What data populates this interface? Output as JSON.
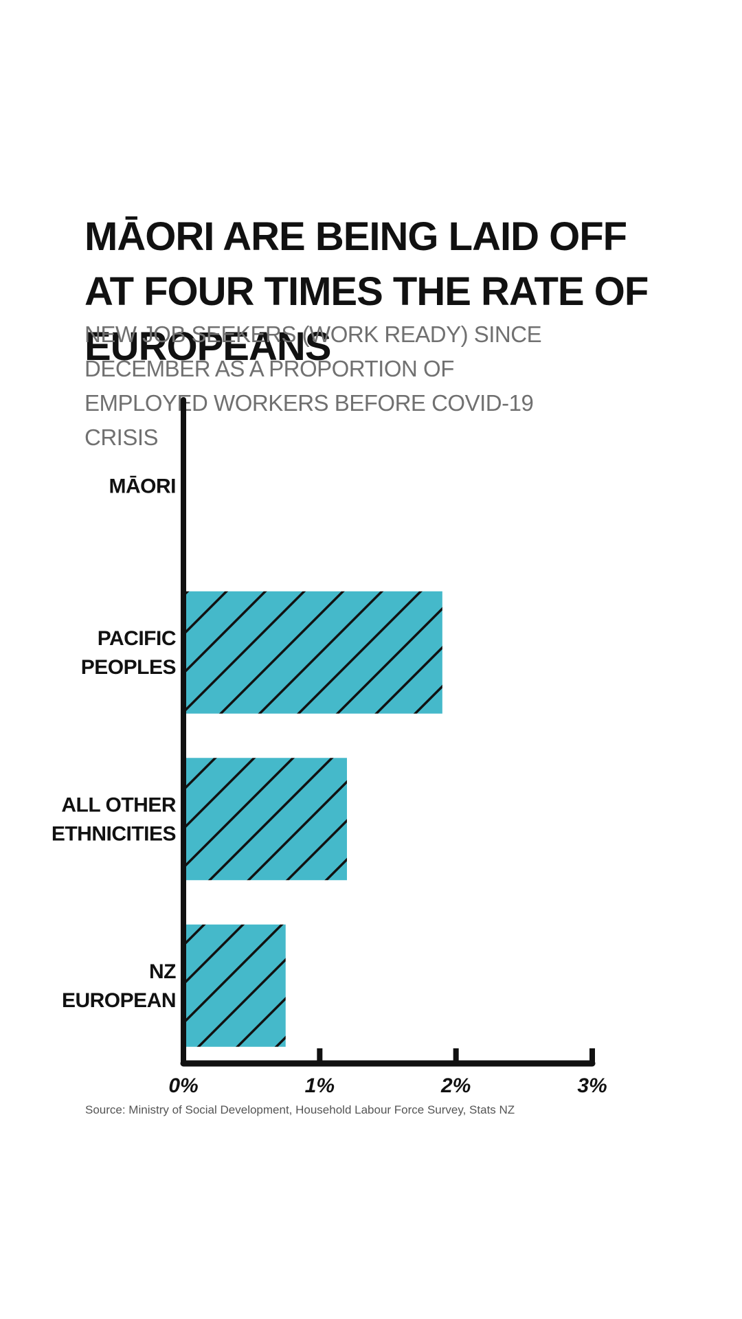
{
  "title": "MĀORI ARE BEING LAID OFF AT FOUR TIMES THE RATE OF EUROPEANS",
  "subtitle": "NEW JOB SEEKERS (WORK READY) SINCE DECEMBER AS A PROPORTION OF EMPLOYED WORKERS BEFORE COVID-19 CRISIS",
  "source": "Source: Ministry of Social Development, Household Labour Force Survey, Stats NZ",
  "colors": {
    "bar": "#45b9ca",
    "hatch": "#111111",
    "axis": "#111111"
  },
  "chart_data": {
    "type": "bar",
    "orientation": "horizontal",
    "categories": [
      [
        "MĀORI"
      ],
      [
        "PACIFIC",
        "PEOPLES"
      ],
      [
        "ALL OTHER",
        "ETHNICITIES"
      ],
      [
        "NZ",
        "EUROPEAN"
      ]
    ],
    "values": [
      null,
      1.9,
      1.2,
      0.75
    ],
    "xlim": [
      0,
      3
    ],
    "x_ticks": [
      "0%",
      "1%",
      "2%",
      "3%"
    ],
    "grid": false
  }
}
